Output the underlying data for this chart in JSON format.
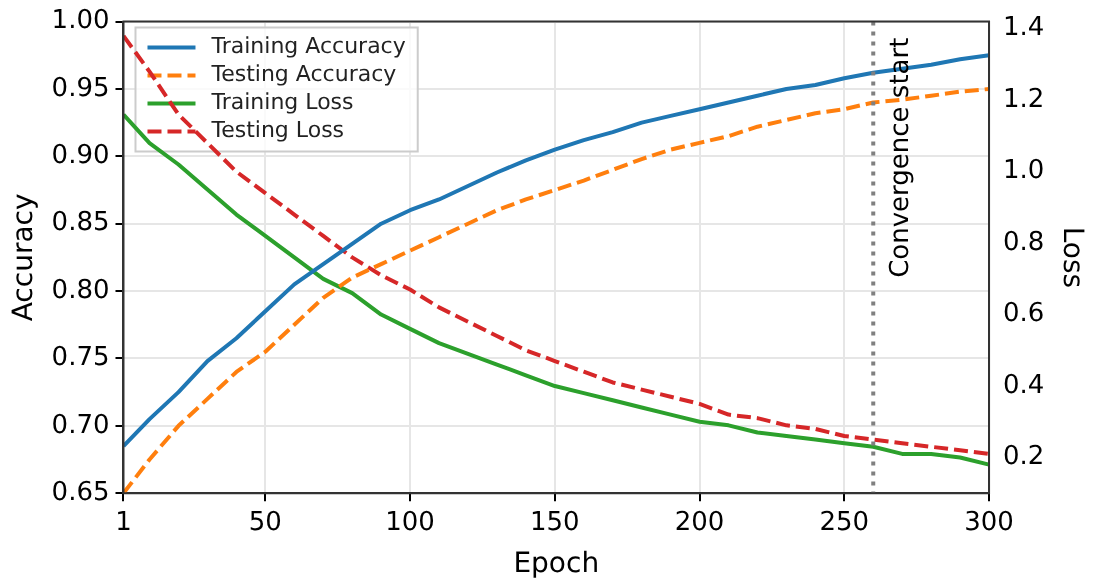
{
  "chart_data": {
    "type": "line",
    "xlabel": "Epoch",
    "ylabel": "Accuracy",
    "y2label": "Loss",
    "x": [
      1,
      10,
      20,
      30,
      40,
      50,
      60,
      70,
      80,
      90,
      100,
      110,
      120,
      130,
      140,
      150,
      160,
      170,
      180,
      190,
      200,
      210,
      220,
      230,
      240,
      250,
      260,
      270,
      280,
      290,
      300
    ],
    "xlim": [
      1,
      300
    ],
    "xticks": [
      1,
      50,
      100,
      150,
      200,
      250,
      300
    ],
    "ylim": [
      0.65,
      1.0
    ],
    "yticks": [
      {
        "value": 0.65,
        "label": "0.65"
      },
      {
        "value": 0.7,
        "label": "0.70"
      },
      {
        "value": 0.75,
        "label": "0.75"
      },
      {
        "value": 0.8,
        "label": "0.80"
      },
      {
        "value": 0.85,
        "label": "0.85"
      },
      {
        "value": 0.9,
        "label": "0.90"
      },
      {
        "value": 0.95,
        "label": "0.95"
      },
      {
        "value": 1.0,
        "label": "1.00"
      }
    ],
    "y2lim": [
      0.1,
      1.42
    ],
    "y2ticks": [
      0.2,
      0.4,
      0.6,
      0.8,
      {
        "value": 1.0,
        "label": "1.0"
      },
      1.2,
      1.4
    ],
    "series": [
      {
        "name": "Training Accuracy",
        "color": "#1f77b4",
        "line_style": "solid",
        "values": [
          0.685,
          0.705,
          0.725,
          0.748,
          0.765,
          0.785,
          0.805,
          0.82,
          0.835,
          0.85,
          0.86,
          0.868,
          0.878,
          0.888,
          0.897,
          0.905,
          0.912,
          0.918,
          0.925,
          0.93,
          0.935,
          0.94,
          0.945,
          0.95,
          0.953,
          0.958,
          0.962,
          0.965,
          0.968,
          0.972,
          0.975
        ]
      },
      {
        "name": "Testing Accuracy",
        "color": "#ff7f0e",
        "line_style": "dashed",
        "values": [
          0.65,
          0.675,
          0.7,
          0.72,
          0.74,
          0.755,
          0.775,
          0.795,
          0.81,
          0.82,
          0.83,
          0.84,
          0.85,
          0.86,
          0.868,
          0.875,
          0.882,
          0.89,
          0.898,
          0.905,
          0.91,
          0.915,
          0.922,
          0.927,
          0.932,
          0.935,
          0.94,
          0.942,
          0.945,
          0.948,
          0.95
        ]
      },
      {
        "name": "Training Loss",
        "color": "#2ca02c",
        "line_style": "solid",
        "axis": "y2",
        "values": [
          1.16,
          1.08,
          1.02,
          0.95,
          0.88,
          0.82,
          0.76,
          0.7,
          0.66,
          0.6,
          0.56,
          0.52,
          0.49,
          0.46,
          0.43,
          0.4,
          0.38,
          0.36,
          0.34,
          0.32,
          0.3,
          0.29,
          0.27,
          0.26,
          0.25,
          0.24,
          0.23,
          0.21,
          0.21,
          0.2,
          0.18
        ]
      },
      {
        "name": "Testing Loss",
        "color": "#d62728",
        "line_style": "dashed",
        "axis": "y2",
        "values": [
          1.38,
          1.28,
          1.16,
          1.08,
          1.0,
          0.94,
          0.88,
          0.82,
          0.76,
          0.71,
          0.67,
          0.62,
          0.58,
          0.54,
          0.5,
          0.47,
          0.44,
          0.41,
          0.39,
          0.37,
          0.35,
          0.32,
          0.31,
          0.29,
          0.28,
          0.26,
          0.25,
          0.24,
          0.23,
          0.22,
          0.21
        ]
      }
    ],
    "ref_lines": [
      {
        "axis": "x",
        "value": 260,
        "label": "Convergence start",
        "color": "#808080",
        "line_style": "dotted"
      }
    ],
    "grid": true,
    "legend": "top left",
    "marker": "none"
  }
}
